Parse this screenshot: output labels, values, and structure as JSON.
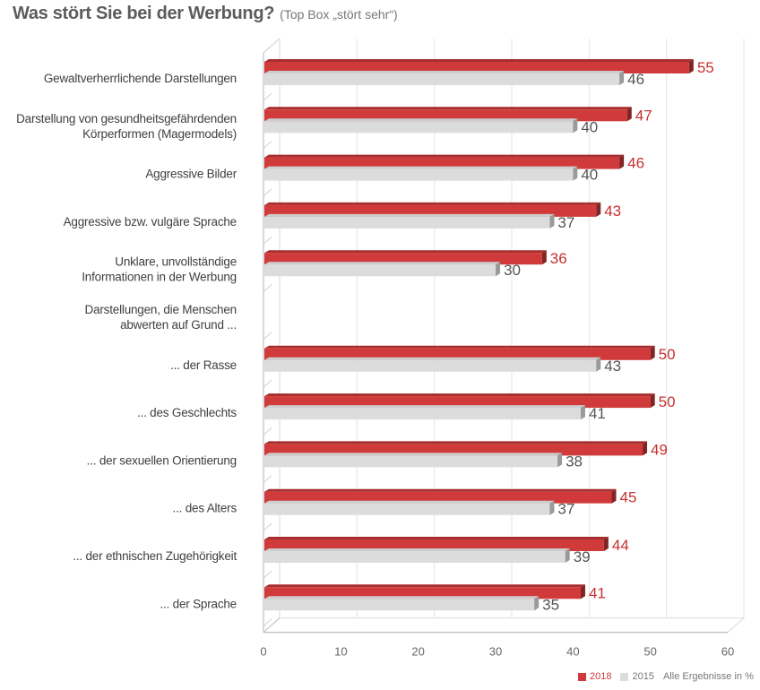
{
  "title": "Was stört Sie bei der Werbung?",
  "subtitle": "(Top Box „stört sehr“)",
  "chart_data": {
    "type": "bar",
    "orientation": "horizontal",
    "categories": [
      [
        "Gewaltverherrlichende Darstellungen"
      ],
      [
        "Darstellung von gesundheitsgefährdenden",
        "Körperformen (Magermodels)"
      ],
      [
        "Aggressive Bilder"
      ],
      [
        "Aggressive bzw. vulgäre Sprache"
      ],
      [
        "Unklare, unvollständige",
        "Informationen in der Werbung"
      ],
      [
        "Darstellungen, die Menschen",
        "abwerten auf Grund ..."
      ],
      [
        "... der Rasse"
      ],
      [
        "... des Geschlechts"
      ],
      [
        "... der sexuellen Orientierung"
      ],
      [
        "... des Alters"
      ],
      [
        "... der ethnischen Zugehörigkeit"
      ],
      [
        "... der Sprache"
      ]
    ],
    "series": [
      {
        "name": "2018",
        "color": "#d13a3a",
        "values": [
          55,
          47,
          46,
          43,
          36,
          null,
          50,
          50,
          49,
          45,
          44,
          41
        ]
      },
      {
        "name": "2015",
        "color": "#dcdcdc",
        "values": [
          46,
          40,
          40,
          37,
          30,
          null,
          43,
          41,
          38,
          37,
          39,
          35
        ]
      }
    ],
    "xlim": [
      0,
      60
    ],
    "xticks": [
      0,
      10,
      20,
      30,
      40,
      50,
      60
    ],
    "grid": true,
    "legend_position": "bottom-right",
    "note": "Alle Ergebnisse in %"
  }
}
